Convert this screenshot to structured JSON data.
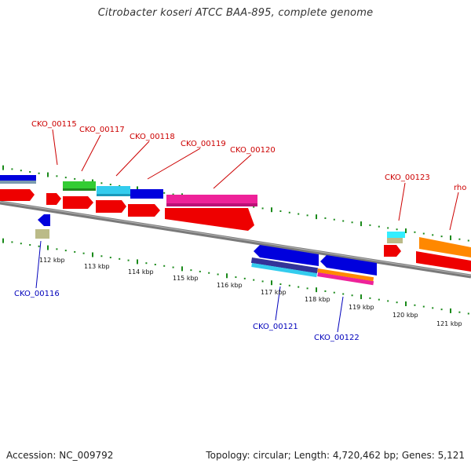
{
  "title": "Citrobacter koseri ATCC BAA-895, complete genome",
  "footer": {
    "accession": "Accession: NC_009792",
    "topology": "Topology: circular; Length: 4,720,462 bp; Genes: 5,121"
  },
  "colors": {
    "label_top": "#cc0000",
    "label_bottom": "#0000bb",
    "tick": "#1a8a1a",
    "leader_top": "#cc0000",
    "leader_bottom": "#0000bb"
  },
  "scale_labels": [
    "112 kbp",
    "113 kbp",
    "114 kbp",
    "115 kbp",
    "116 kbp",
    "117 kbp",
    "118 kbp",
    "119 kbp",
    "120 kbp",
    "121 kbp"
  ],
  "top_labels": [
    "CKO_00115",
    "CKO_00117",
    "CKO_00118",
    "CKO_00119",
    "CKO_00120",
    "CKO_00123",
    "rho"
  ],
  "bottom_labels": [
    "CKO_00116",
    "CKO_00121",
    "CKO_00122"
  ]
}
